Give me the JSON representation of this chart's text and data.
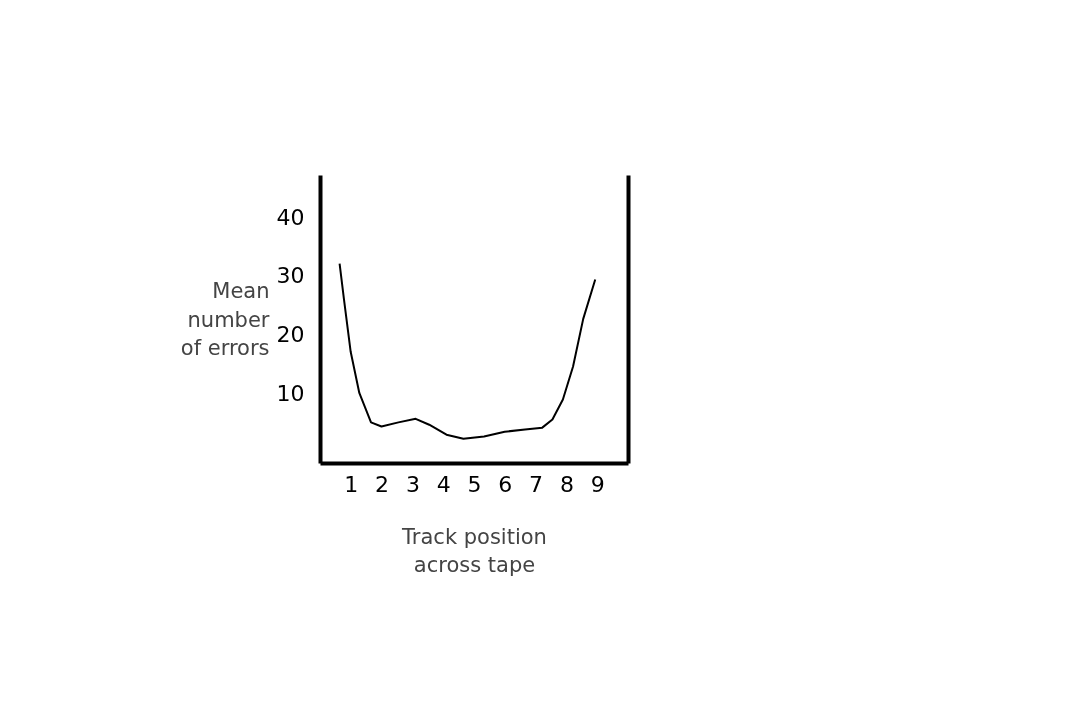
{
  "chart_data": {
    "type": "line",
    "xlabel": "Track position\nacross tape",
    "ylabel": "Mean\nnumber\nof errors",
    "x": [
      0.62,
      0.76,
      0.98,
      1.26,
      1.64,
      1.98,
      2.53,
      3.09,
      3.53,
      4.09,
      4.64,
      5.31,
      5.98,
      6.64,
      7.2,
      7.53,
      7.87,
      8.2,
      8.53,
      8.92
    ],
    "series": [
      {
        "color": "#000000",
        "values": [
          32,
          26,
          17,
          10,
          5,
          4.3,
          5,
          5.6,
          4.6,
          2.9,
          2.2,
          2.6,
          3.4,
          3.8,
          4.1,
          5.5,
          8.9,
          14.5,
          22.6,
          29.3
        ]
      }
    ],
    "xlim": [
      0,
      10
    ],
    "ylim": [
      -2,
      47
    ],
    "xticks": [
      1,
      2,
      3,
      4,
      5,
      6,
      7,
      8,
      9
    ],
    "yticks": [
      10,
      20,
      30,
      40
    ],
    "grid": false,
    "marker": "none",
    "line_style": "solid"
  }
}
